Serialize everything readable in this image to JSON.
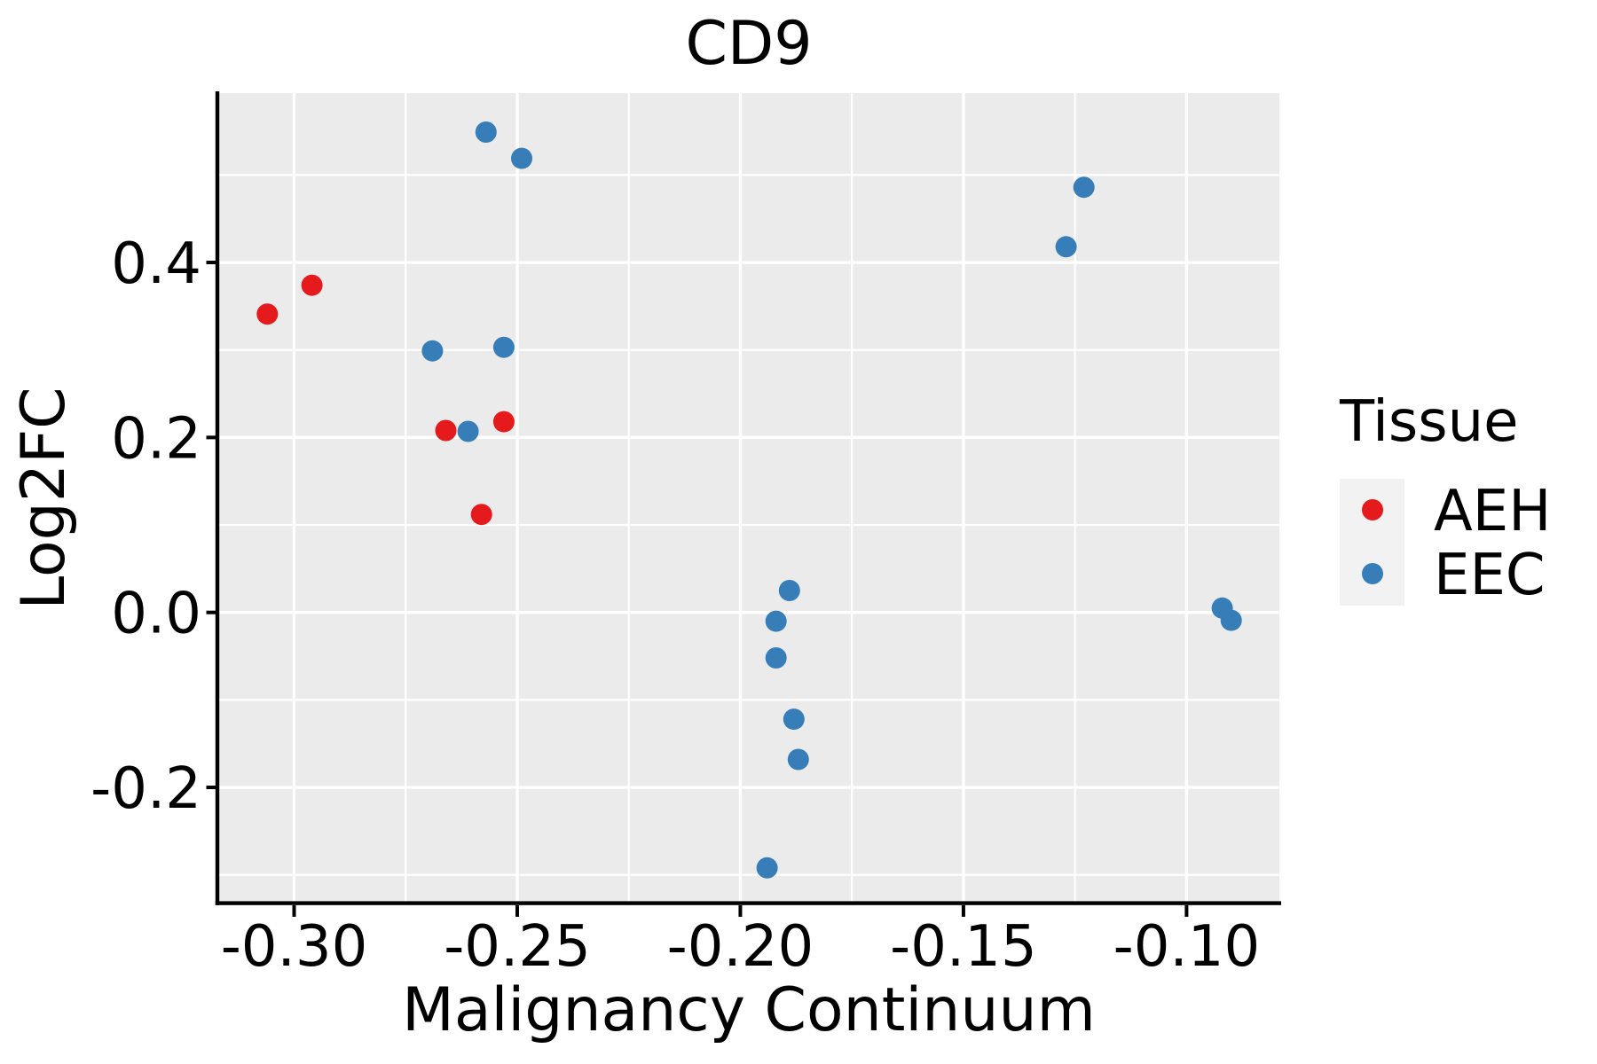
{
  "title": "CD9",
  "colors": {
    "panel_bg": "#EBEBEB",
    "grid": "#FFFFFF",
    "axis_line": "#000000",
    "text": "#000000",
    "legend_key_bg": "#F2F2F2",
    "aeh": "#E41A1C",
    "eec": "#377EB8"
  },
  "legend": {
    "title": "Tissue",
    "items": [
      {
        "label": "AEH",
        "color": "#E41A1C"
      },
      {
        "label": "EEC",
        "color": "#377EB8"
      }
    ]
  },
  "chart_data": {
    "type": "scatter",
    "title": "CD9",
    "xlabel": "Malignancy Continuum",
    "ylabel": "Log2FC",
    "xlim": [
      -0.317,
      -0.0792
    ],
    "ylim": [
      -0.3317,
      0.5936
    ],
    "x_ticks": [
      -0.3,
      -0.25,
      -0.2,
      -0.15,
      -0.1
    ],
    "x_tick_labels": [
      "-0.30",
      "-0.25",
      "-0.20",
      "-0.15",
      "-0.10"
    ],
    "x_minor_ticks": [
      -0.275,
      -0.225,
      -0.175,
      -0.125
    ],
    "y_ticks": [
      0.4,
      0.2,
      0.0,
      -0.2
    ],
    "y_tick_labels": [
      "0.4",
      "0.2",
      "0.0",
      "-0.2"
    ],
    "y_minor_ticks": [
      0.5,
      0.3,
      0.1,
      -0.1,
      -0.3
    ],
    "grid": true,
    "legend_position": "right",
    "point_radius_px": 12,
    "series": [
      {
        "name": "AEH",
        "color": "#E41A1C",
        "points": [
          [
            -0.306,
            0.341
          ],
          [
            -0.296,
            0.374
          ],
          [
            -0.266,
            0.208
          ],
          [
            -0.258,
            0.112
          ],
          [
            -0.253,
            0.218
          ]
        ]
      },
      {
        "name": "EEC",
        "color": "#377EB8",
        "points": [
          [
            -0.269,
            0.299
          ],
          [
            -0.261,
            0.207
          ],
          [
            -0.257,
            0.549
          ],
          [
            -0.253,
            0.303
          ],
          [
            -0.249,
            0.519
          ],
          [
            -0.194,
            -0.292
          ],
          [
            -0.192,
            -0.01
          ],
          [
            -0.192,
            -0.052
          ],
          [
            -0.189,
            0.025
          ],
          [
            -0.188,
            -0.122
          ],
          [
            -0.187,
            -0.168
          ],
          [
            -0.127,
            0.418
          ],
          [
            -0.123,
            0.486
          ],
          [
            -0.092,
            0.005
          ],
          [
            -0.09,
            -0.009
          ]
        ]
      }
    ]
  }
}
